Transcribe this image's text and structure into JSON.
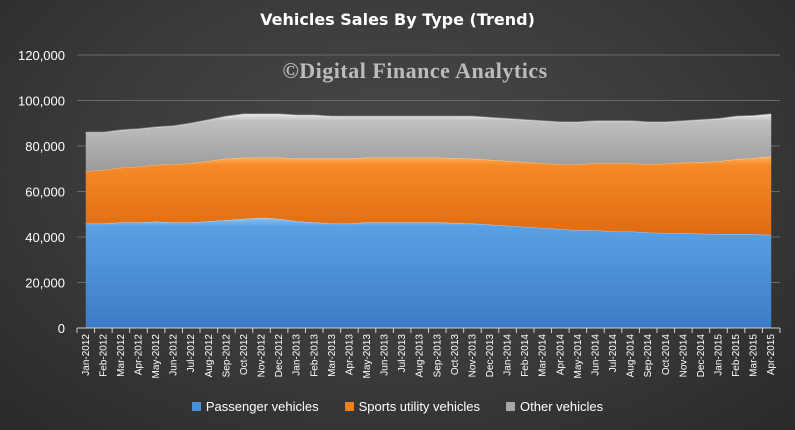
{
  "chart_data": {
    "type": "area",
    "stacked": true,
    "title": "Vehicles Sales By Type (Trend)",
    "watermark": "©Digital Finance Analytics",
    "xlabel": "",
    "ylabel": "",
    "ylim": [
      0,
      120000
    ],
    "yticks": [
      0,
      20000,
      40000,
      60000,
      80000,
      100000,
      120000
    ],
    "ytick_labels": [
      "0",
      "20,000",
      "40,000",
      "60,000",
      "80,000",
      "100,000",
      "120,000"
    ],
    "grid": true,
    "legend_position": "bottom",
    "categories": [
      "Jan-2012",
      "Feb-2012",
      "Mar-2012",
      "Apr-2012",
      "May-2012",
      "Jun-2012",
      "Jul-2012",
      "Aug-2012",
      "Sep-2012",
      "Oct-2012",
      "Nov-2012",
      "Dec-2012",
      "Jan-2013",
      "Feb-2013",
      "Mar-2013",
      "Apr-2013",
      "May-2013",
      "Jun-2013",
      "Jul-2013",
      "Aug-2013",
      "Sep-2013",
      "Oct-2013",
      "Nov-2013",
      "Dec-2013",
      "Jan-2014",
      "Feb-2014",
      "Mar-2014",
      "Apr-2014",
      "May-2014",
      "Jun-2014",
      "Jul-2014",
      "Aug-2014",
      "Sep-2014",
      "Oct-2014",
      "Nov-2014",
      "Dec-2014",
      "Jan-2015",
      "Feb-2015",
      "Mar-2015",
      "Apr-2015"
    ],
    "series": [
      {
        "name": "Passenger vehicles",
        "color": "#4a90d9",
        "values": [
          46000,
          46000,
          46500,
          46500,
          46800,
          46500,
          46500,
          47000,
          47500,
          48000,
          48500,
          48000,
          47000,
          46500,
          46000,
          46000,
          46500,
          46500,
          46500,
          46500,
          46500,
          46200,
          46000,
          45500,
          45000,
          44500,
          44000,
          43500,
          43000,
          43000,
          42500,
          42500,
          42000,
          41800,
          41800,
          41500,
          41300,
          41300,
          41300,
          41000
        ]
      },
      {
        "name": "Sports utility vehicles",
        "color": "#f07f1c",
        "values": [
          23000,
          23500,
          24000,
          24500,
          25000,
          25500,
          26000,
          26500,
          27000,
          27000,
          26500,
          27000,
          27500,
          28000,
          28500,
          28500,
          28500,
          28500,
          28500,
          28500,
          28500,
          28500,
          28500,
          28500,
          28500,
          28500,
          28500,
          28500,
          29000,
          29500,
          30000,
          30000,
          30000,
          30500,
          31000,
          31500,
          32000,
          33000,
          33500,
          34500
        ]
      },
      {
        "name": "Other vehicles",
        "color": "#a6a6a6",
        "values": [
          17000,
          16500,
          16500,
          16500,
          16500,
          16800,
          17500,
          18000,
          18500,
          19000,
          19000,
          19000,
          19000,
          19000,
          18500,
          18500,
          18000,
          18000,
          18000,
          18000,
          18000,
          18300,
          18500,
          18500,
          18500,
          18500,
          18500,
          18500,
          18500,
          18500,
          18500,
          18500,
          18500,
          18200,
          18200,
          18500,
          18700,
          18700,
          18500,
          18500
        ]
      }
    ]
  }
}
